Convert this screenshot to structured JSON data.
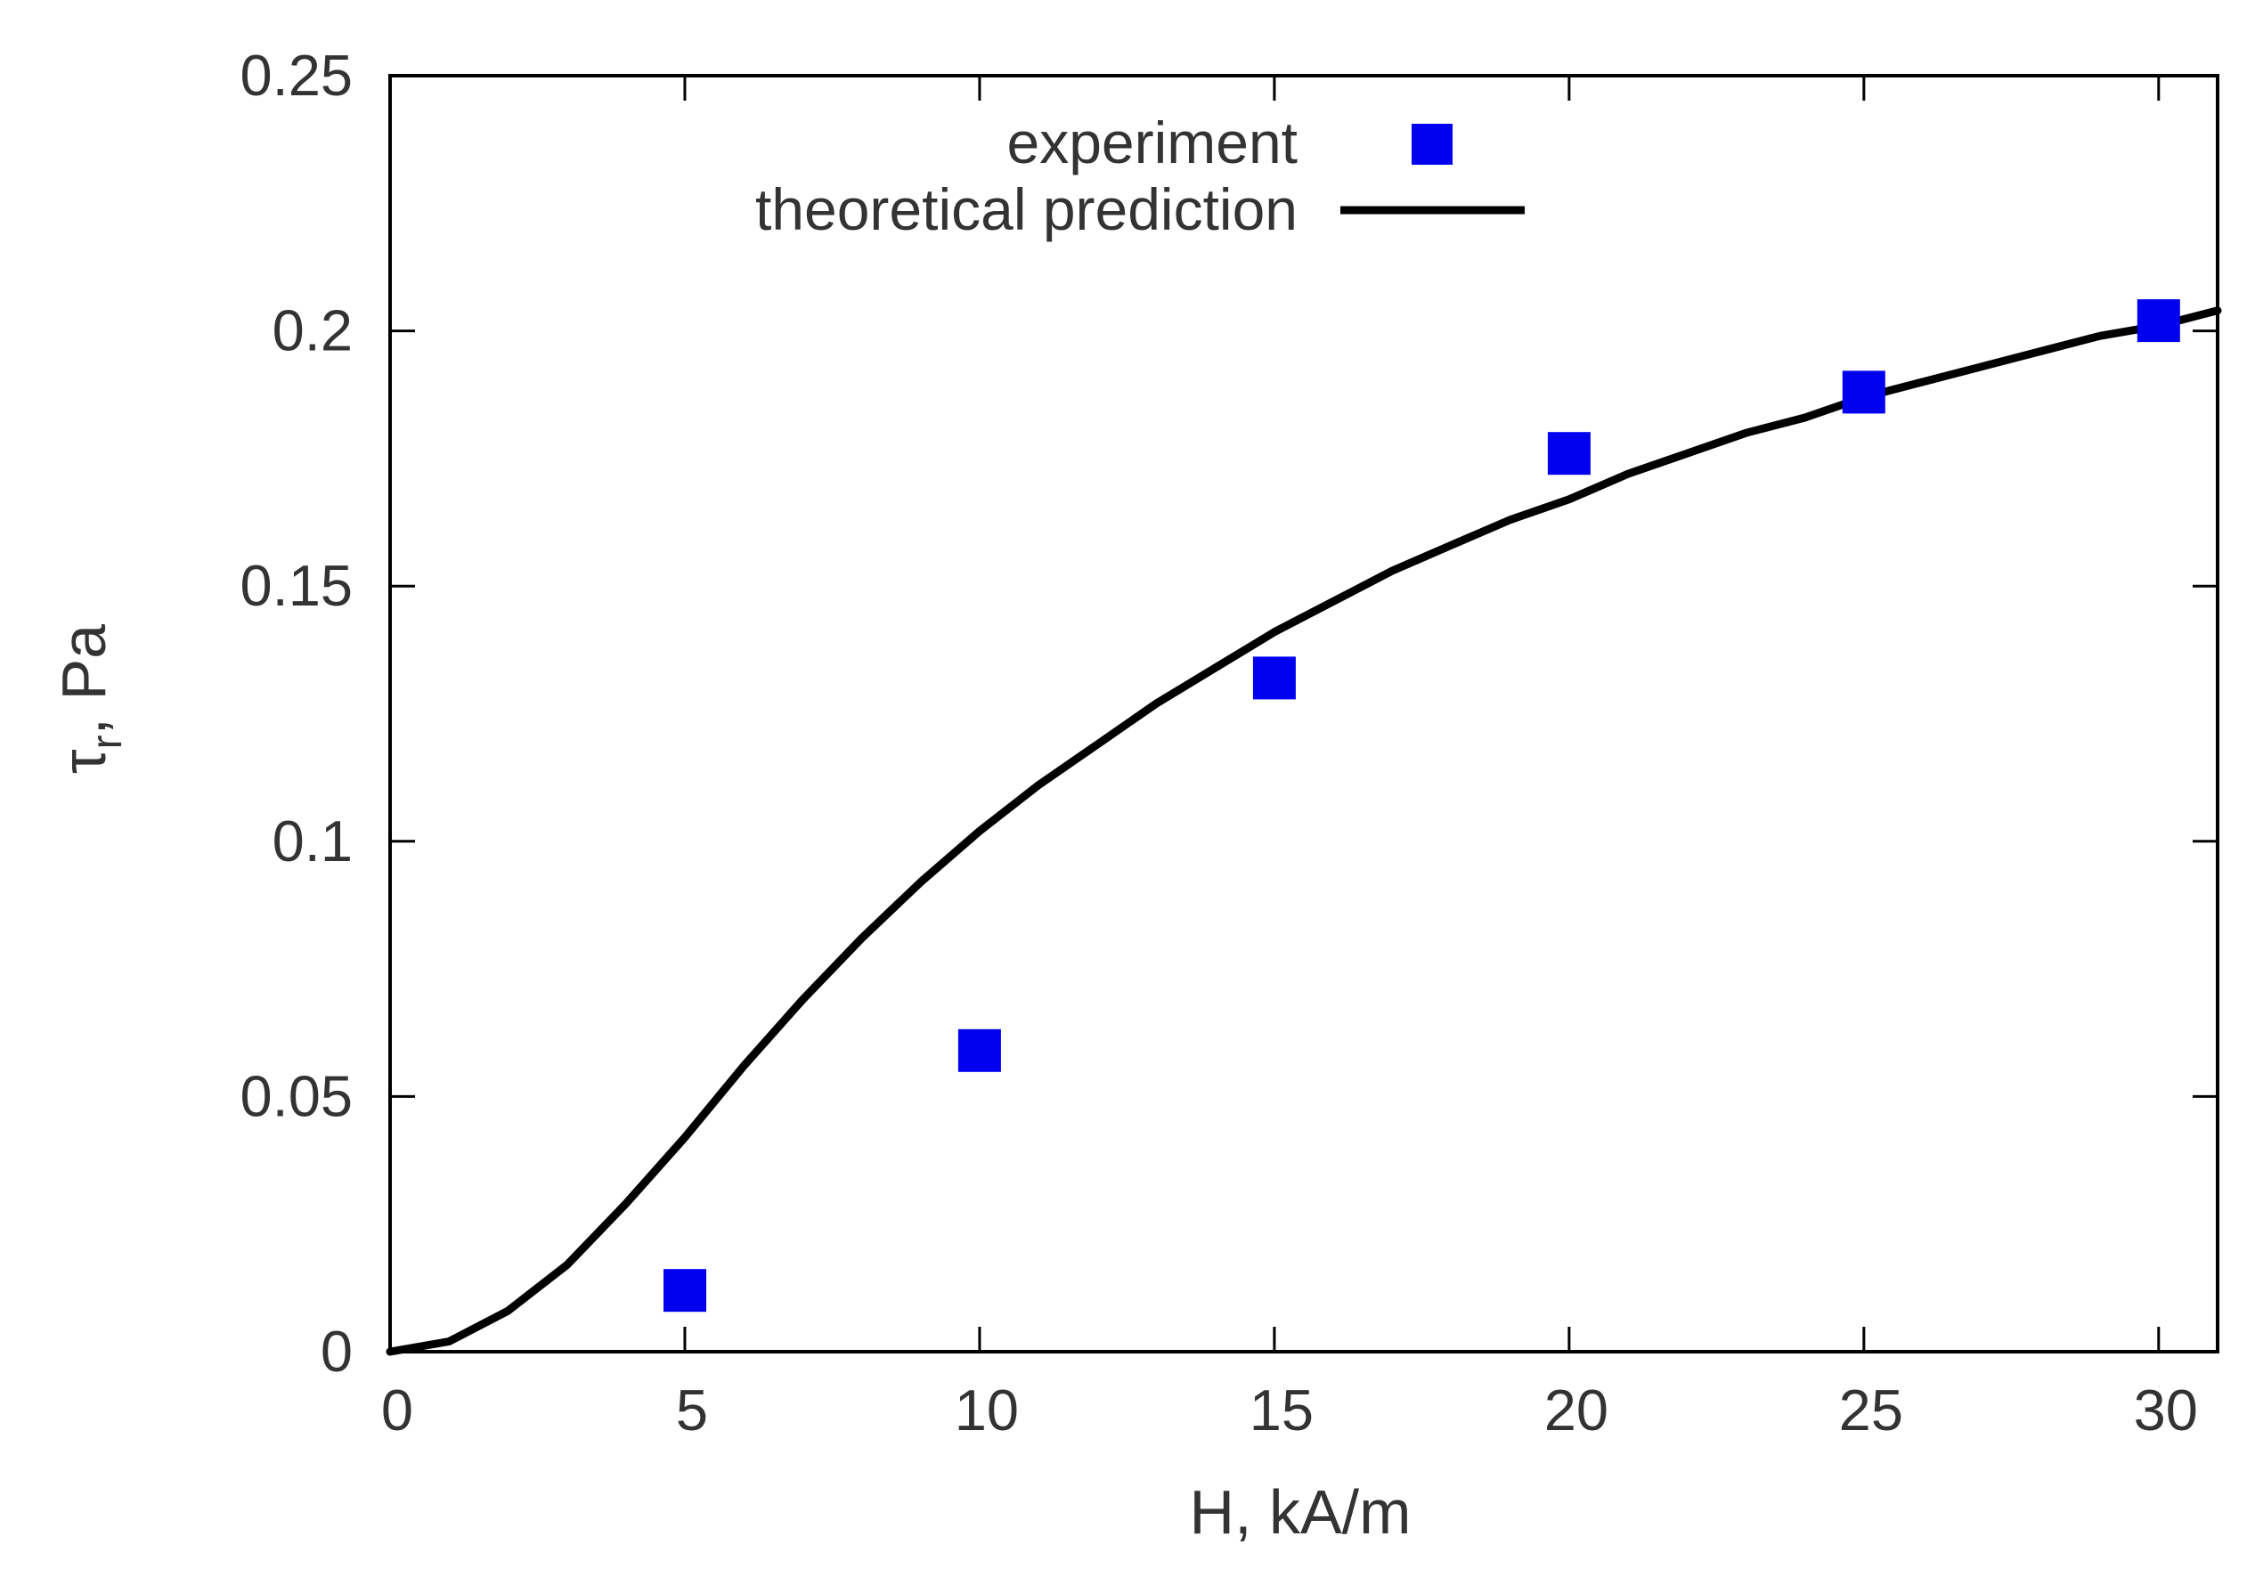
{
  "chart_data": {
    "type": "scatter",
    "title": "",
    "xlabel": "H, kA/m",
    "ylabel": {
      "symbol": "τ",
      "subscript": "r",
      "rest": ", Pa"
    },
    "xlim": [
      0,
      31
    ],
    "ylim": [
      0,
      0.25
    ],
    "xticks": [
      0,
      5,
      10,
      15,
      20,
      25,
      30
    ],
    "yticks": [
      0,
      0.05,
      0.1,
      0.15,
      0.2,
      0.25
    ],
    "xtick_labels": [
      "0",
      "5",
      "10",
      "15",
      "20",
      "25",
      "30"
    ],
    "ytick_labels": [
      "0",
      "0.05",
      "0.1",
      "0.15",
      "0.2",
      "0.25"
    ],
    "grid": false,
    "legend_position": "top-center",
    "series": [
      {
        "name": "experiment",
        "kind": "markers",
        "marker": "square",
        "color": "#0000ee",
        "x": [
          5,
          10,
          15,
          20,
          25,
          30
        ],
        "y": [
          0.012,
          0.059,
          0.132,
          0.176,
          0.188,
          0.202
        ]
      },
      {
        "name": "theoretical prediction",
        "kind": "line",
        "color": "#000000",
        "x": [
          0,
          1,
          2,
          3,
          4,
          5,
          6,
          7,
          8,
          9,
          10,
          11,
          12,
          13,
          14,
          15,
          16,
          17,
          18,
          19,
          20,
          21,
          22,
          23,
          24,
          25,
          26,
          27,
          28,
          29,
          30,
          31
        ],
        "y": [
          0,
          0.002,
          0.008,
          0.017,
          0.029,
          0.042,
          0.056,
          0.069,
          0.081,
          0.092,
          0.102,
          0.111,
          0.119,
          0.127,
          0.134,
          0.141,
          0.147,
          0.153,
          0.158,
          0.163,
          0.167,
          0.172,
          0.176,
          0.18,
          0.183,
          0.187,
          0.19,
          0.193,
          0.196,
          0.199,
          0.201,
          0.204
        ]
      }
    ]
  }
}
